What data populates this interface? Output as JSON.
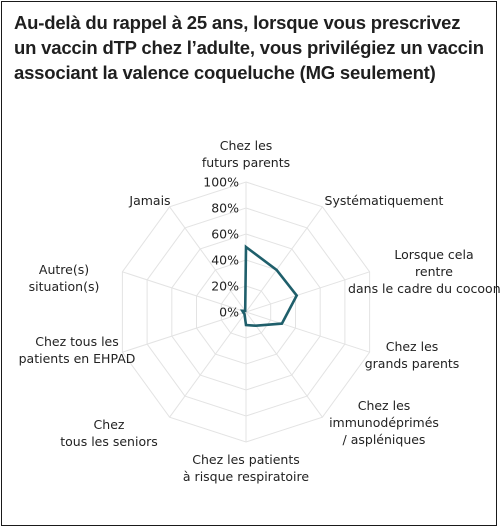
{
  "title_lines": [
    "Au-delà du rappel à 25 ans, lorsque vous prescrivez",
    "un vaccin dTP chez l’adulte, vous privilégiez un vaccin",
    "associant la valence coqueluche (MG seulement)"
  ],
  "chart_data": {
    "type": "radar",
    "title": "Au-delà du rappel à 25 ans, lorsque vous prescrivez un vaccin dTP chez l’adulte, vous privilégiez un vaccin associant la valence coqueluche (MG seulement)",
    "categories": [
      "Chez les futurs parents",
      "Systématiquement",
      "Lorsque cela rentre dans le cadre du cocooning",
      "Chez les grands parents",
      "Chez les immunodéprimés / aspléniques",
      "Chez les patients à risque respiratoire",
      "Chez tous les seniors",
      "Chez tous les patients en EHPAD",
      "Autre(s) situation(s)",
      "Jamais"
    ],
    "values": [
      50,
      40,
      41,
      29,
      13,
      10,
      2,
      2,
      3,
      1
    ],
    "unit": "%",
    "rlim": [
      0,
      100
    ],
    "ticks": [
      "0%",
      "20%",
      "40%",
      "60%",
      "80%",
      "100%"
    ],
    "grid": true,
    "line_color": "#1f5f6b",
    "grid_color": "#e3e3e3"
  }
}
